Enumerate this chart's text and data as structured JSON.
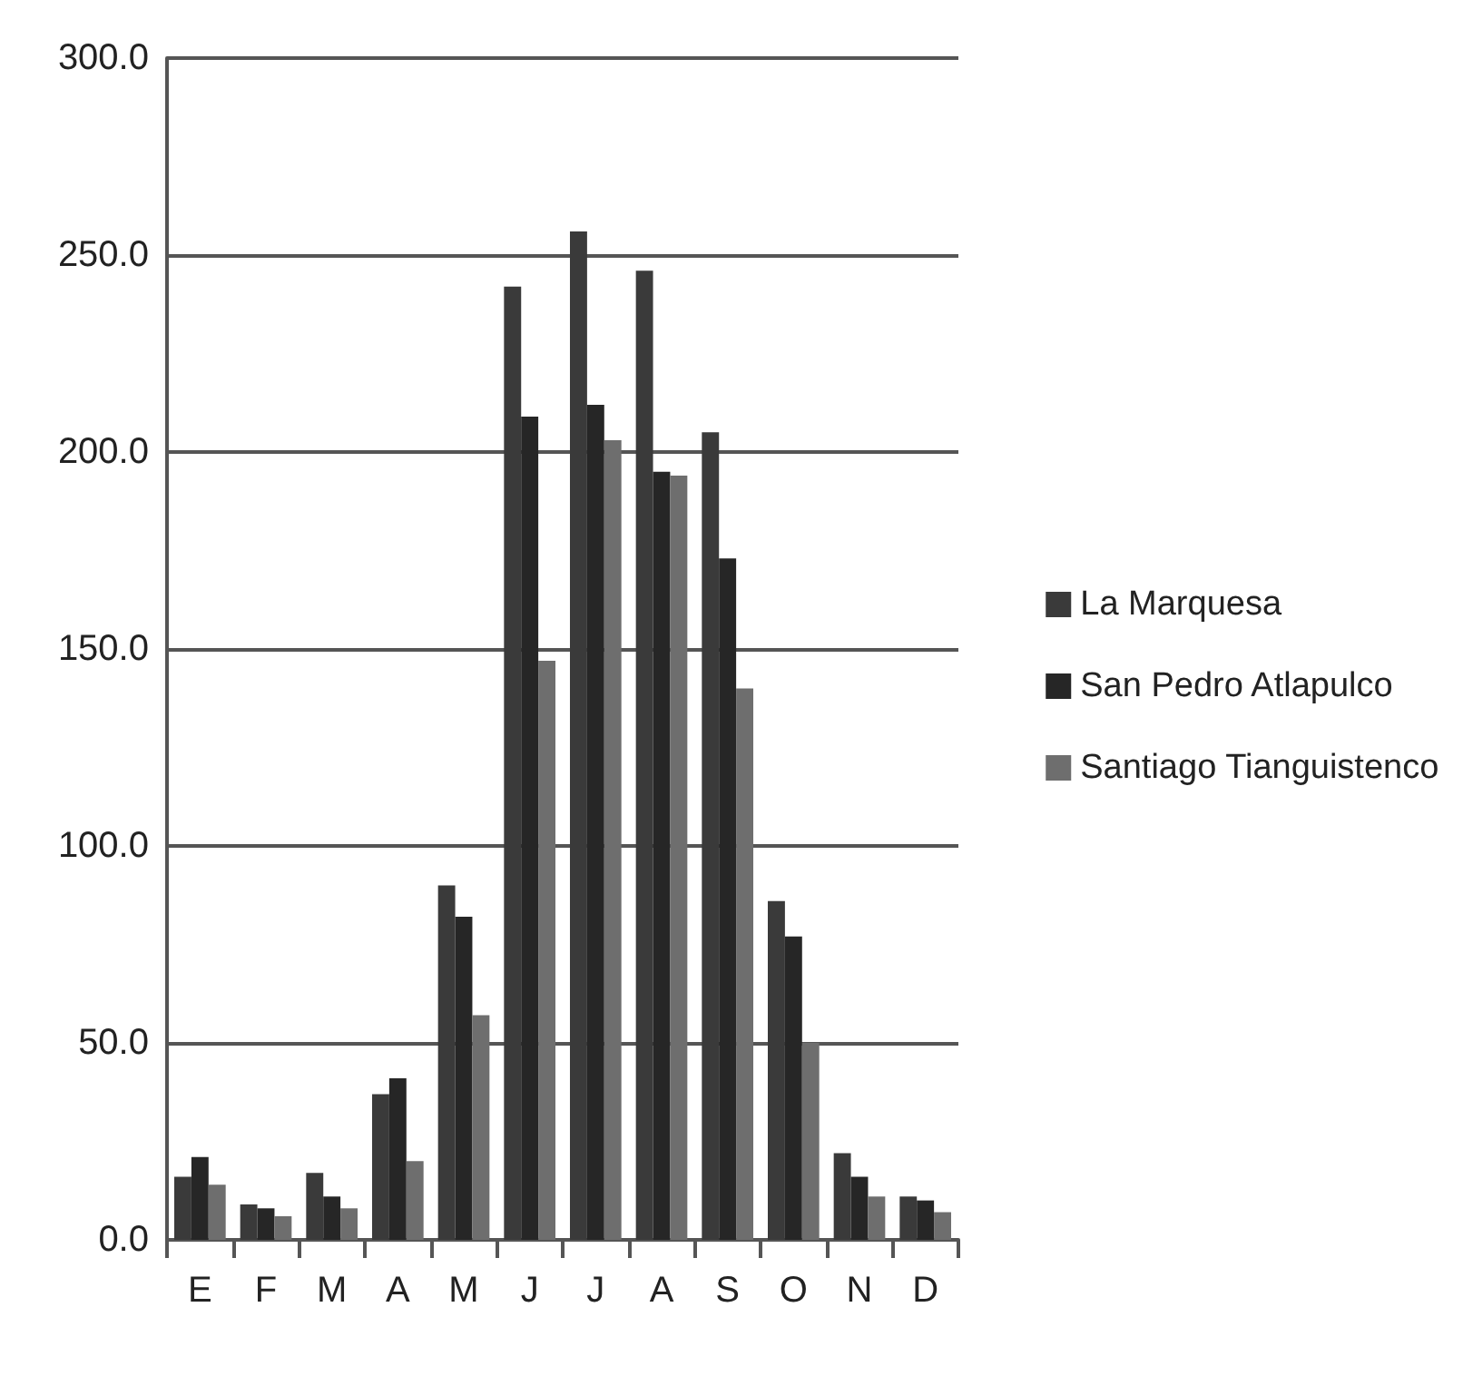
{
  "chart_data": {
    "type": "bar",
    "categories": [
      "E",
      "F",
      "M",
      "A",
      "M",
      "J",
      "J",
      "A",
      "S",
      "O",
      "N",
      "D"
    ],
    "series": [
      {
        "name": "La Marquesa",
        "color": "#3a3a3a",
        "values": [
          16,
          9,
          17,
          37,
          90,
          242,
          256,
          246,
          205,
          86,
          22,
          11
        ]
      },
      {
        "name": "San Pedro Atlapulco",
        "color": "#262626",
        "values": [
          21,
          8,
          11,
          41,
          82,
          209,
          212,
          195,
          173,
          77,
          16,
          10
        ]
      },
      {
        "name": "Santiago Tianguistenco",
        "color": "#6e6e6e",
        "values": [
          14,
          6,
          8,
          20,
          57,
          147,
          203,
          194,
          140,
          50,
          11,
          7
        ]
      }
    ],
    "ylim": [
      0,
      300
    ],
    "yticks": [
      {
        "value": 0,
        "label": "0.0"
      },
      {
        "value": 50,
        "label": "50.0"
      },
      {
        "value": 100,
        "label": "100.0"
      },
      {
        "value": 150,
        "label": "150.0"
      },
      {
        "value": 200,
        "label": "200.0"
      },
      {
        "value": 250,
        "label": "250.0"
      },
      {
        "value": 300,
        "label": "300.0"
      }
    ],
    "grid": "y",
    "legend": "right"
  }
}
